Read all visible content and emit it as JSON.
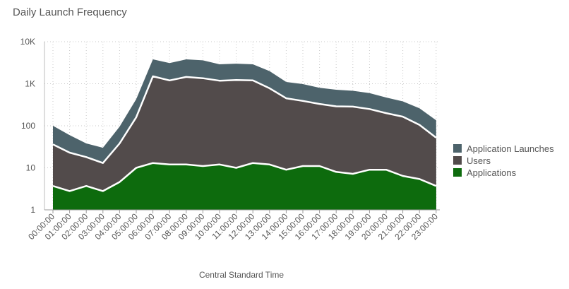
{
  "chart_data": {
    "type": "area",
    "title": "Daily Launch Frequency",
    "xlabel": "Central Standard Time",
    "ylabel": "",
    "yscale": "log",
    "ylim": [
      1,
      10000
    ],
    "yticks": [
      1,
      10,
      100,
      1000,
      10000
    ],
    "ytick_labels": [
      "1",
      "10",
      "100",
      "1K",
      "10K"
    ],
    "grid": "dotted",
    "legend": "right",
    "categories": [
      "00:00:00",
      "01:00:00",
      "02:00:00",
      "03:00:00",
      "04:00:00",
      "05:00:00",
      "06:00:00",
      "07:00:00",
      "08:00:00",
      "09:00:00",
      "10:00:00",
      "11:00:00",
      "12:00:00",
      "13:00:00",
      "14:00:00",
      "15:00:00",
      "16:00:00",
      "17:00:00",
      "18:00:00",
      "19:00:00",
      "20:00:00",
      "21:00:00",
      "22:00:00",
      "23:00:00"
    ],
    "series": [
      {
        "name": "Application Launches",
        "color": "#4d636b",
        "values": [
          100,
          60,
          38,
          30,
          95,
          430,
          3800,
          3100,
          3800,
          3600,
          2900,
          3000,
          2900,
          2000,
          1100,
          980,
          800,
          720,
          680,
          600,
          470,
          380,
          260,
          135
        ]
      },
      {
        "name": "Users",
        "color": "#524b4b",
        "values": [
          36,
          23,
          18,
          13,
          38,
          160,
          1500,
          1200,
          1450,
          1350,
          1180,
          1230,
          1200,
          780,
          450,
          390,
          330,
          290,
          285,
          250,
          200,
          165,
          105,
          52
        ]
      },
      {
        "name": "Applications",
        "color": "#0d6b0d",
        "values": [
          3.7,
          2.8,
          3.7,
          2.8,
          4.6,
          10,
          13,
          12,
          12,
          11,
          12,
          10,
          13,
          12,
          9,
          11,
          11,
          8,
          7.2,
          9,
          9,
          6.4,
          5.4,
          3.7
        ]
      }
    ]
  }
}
